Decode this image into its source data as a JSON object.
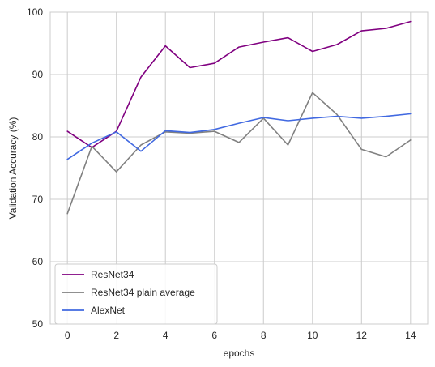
{
  "chart_data": {
    "type": "line",
    "title": "",
    "xlabel": "epochs",
    "ylabel": "Validation Accuracy (%)",
    "xlim": [
      -0.7,
      14.7
    ],
    "ylim": [
      50,
      100
    ],
    "xticks": [
      0,
      2,
      4,
      6,
      8,
      10,
      12,
      14
    ],
    "yticks": [
      50,
      60,
      70,
      80,
      90,
      100
    ],
    "grid": true,
    "legend_position": "lower-left",
    "x": [
      0,
      1,
      2,
      3,
      4,
      5,
      6,
      7,
      8,
      9,
      10,
      11,
      12,
      13,
      14
    ],
    "series": [
      {
        "name": "ResNet34",
        "color": "#800080",
        "values": [
          80.9,
          78.3,
          80.9,
          89.6,
          94.6,
          91.1,
          91.8,
          94.4,
          95.2,
          95.9,
          93.7,
          94.8,
          97.0,
          97.4,
          98.5
        ]
      },
      {
        "name": "ResNet34 plain average",
        "color": "#808080",
        "values": [
          67.7,
          78.5,
          74.4,
          78.7,
          80.8,
          80.6,
          80.9,
          79.1,
          83.0,
          78.7,
          87.1,
          83.6,
          78.0,
          76.8,
          79.5
        ]
      },
      {
        "name": "AlexNet",
        "color": "#4169e1",
        "values": [
          76.4,
          79.0,
          80.8,
          77.7,
          81.0,
          80.7,
          81.2,
          82.2,
          83.1,
          82.6,
          83.0,
          83.3,
          83.0,
          83.3,
          83.7
        ]
      }
    ]
  }
}
